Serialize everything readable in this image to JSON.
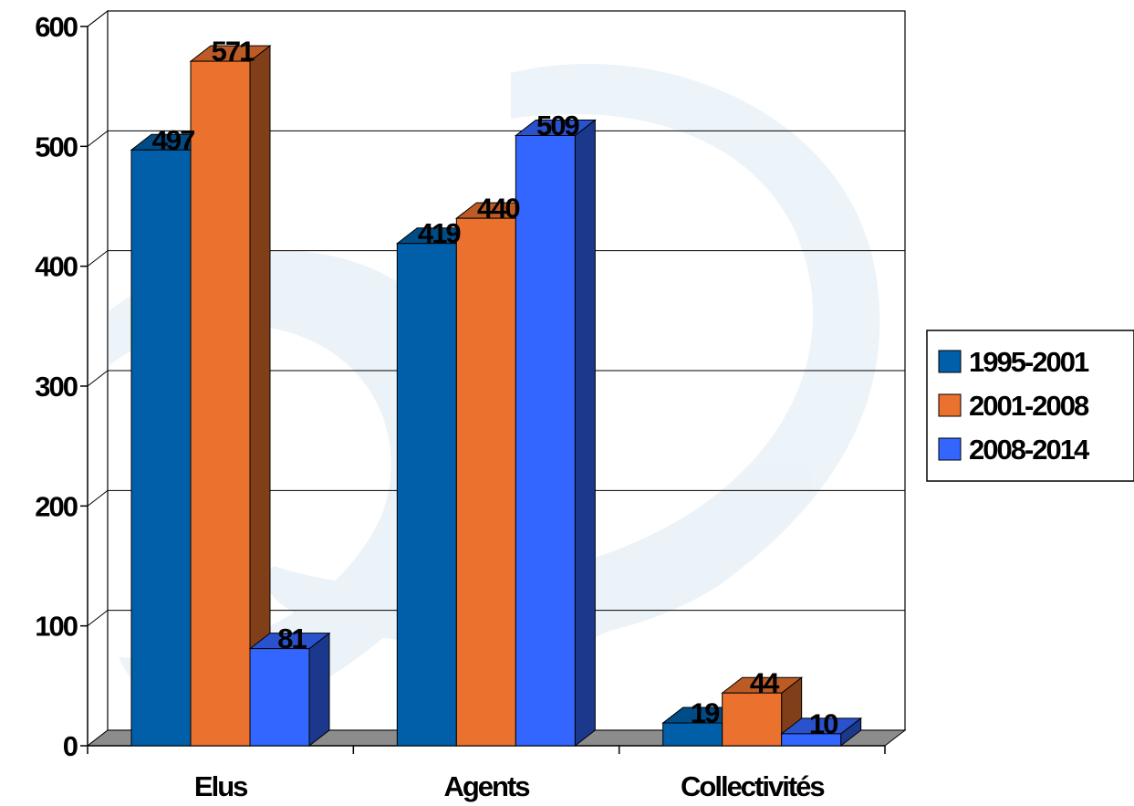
{
  "chart_data": {
    "type": "bar",
    "categories": [
      "Elus",
      "Agents",
      "Collectivités"
    ],
    "series": [
      {
        "name": "1995-2001",
        "values": [
          497,
          419,
          19
        ],
        "color": "#005fa8"
      },
      {
        "name": "2001-2008",
        "values": [
          571,
          440,
          44
        ],
        "color": "#eb722e"
      },
      {
        "name": "2008-2014",
        "values": [
          81,
          509,
          10
        ],
        "color": "#3366ff"
      }
    ],
    "yticks": [
      "0",
      "100",
      "200",
      "300",
      "400",
      "500",
      "600"
    ],
    "ylim": [
      0,
      600
    ],
    "grid": true,
    "legend_position": "right",
    "three_d": true
  }
}
